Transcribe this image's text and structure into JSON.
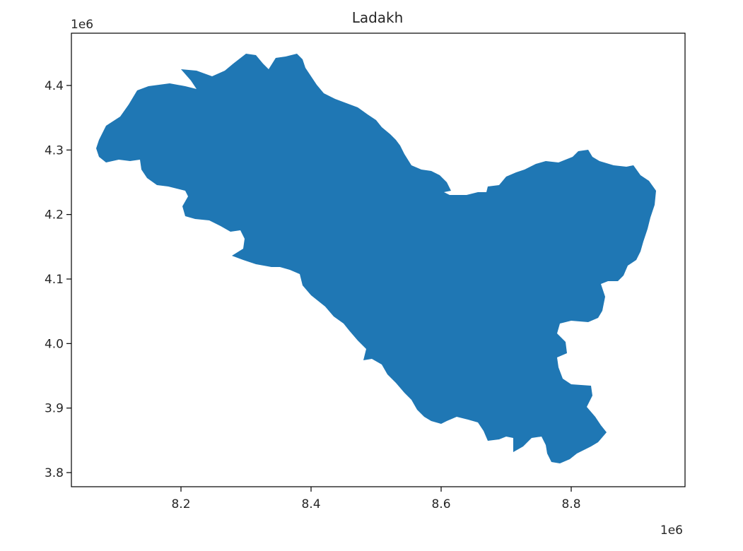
{
  "title": "Ladakh",
  "x_axis": {
    "offset_label": "1e6",
    "ticks": [
      {
        "value": 8.2,
        "label": "8.2"
      },
      {
        "value": 8.4,
        "label": "8.4"
      },
      {
        "value": 8.6,
        "label": "8.6"
      },
      {
        "value": 8.8,
        "label": "8.8"
      }
    ]
  },
  "y_axis": {
    "offset_label": "1e6",
    "ticks": [
      {
        "value": 3.8,
        "label": "3.8"
      },
      {
        "value": 3.9,
        "label": "3.9"
      },
      {
        "value": 4.0,
        "label": "4.0"
      },
      {
        "value": 4.1,
        "label": "4.1"
      },
      {
        "value": 4.2,
        "label": "4.2"
      },
      {
        "value": 4.3,
        "label": "4.3"
      },
      {
        "value": 4.4,
        "label": "4.4"
      }
    ]
  },
  "region": {
    "fill_color": "#1f77b4"
  }
}
